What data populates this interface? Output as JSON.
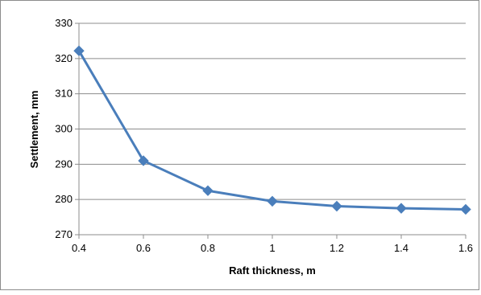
{
  "chart_data": {
    "type": "line",
    "title": "",
    "xlabel": "Raft thickness, m",
    "ylabel": "Settlement, mm",
    "x": [
      0.4,
      0.6,
      0.8,
      1.0,
      1.2,
      1.4,
      1.6
    ],
    "series": [
      {
        "values": [
          322.2,
          291.0,
          282.5,
          279.5,
          278.1,
          277.5,
          277.2
        ],
        "color": "#4a7ebb",
        "marker": "diamond"
      }
    ],
    "xlim": [
      0.4,
      1.6
    ],
    "ylim": [
      270,
      330
    ],
    "x_ticks": [
      "0.4",
      "0.6",
      "0.8",
      "1",
      "1.2",
      "1.4",
      "1.6"
    ],
    "y_ticks": [
      "270",
      "280",
      "290",
      "300",
      "310",
      "320",
      "330"
    ],
    "grid": "horizontal",
    "legend": "none"
  }
}
